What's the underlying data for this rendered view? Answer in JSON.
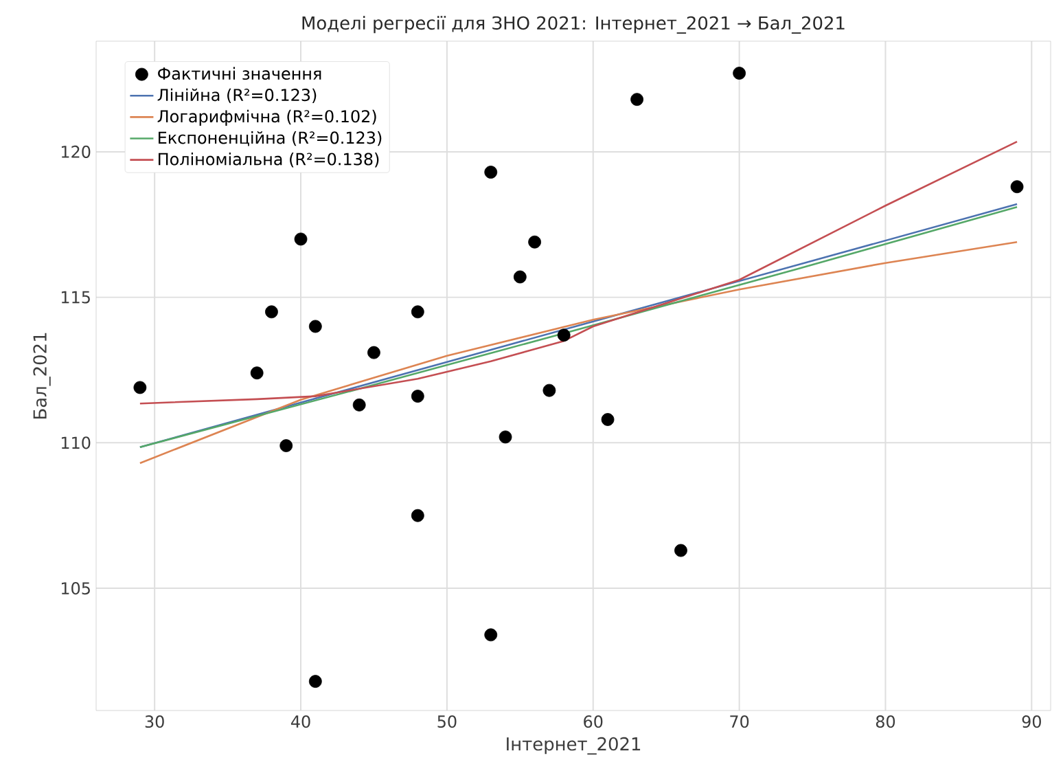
{
  "chart_data": {
    "type": "scatter",
    "title": "Моделі регресії для ЗНО 2021: Інтернет_2021 → Бал_2021",
    "xlabel": "Інтернет_2021",
    "ylabel": "Бал_2021",
    "xlim": [
      26,
      91.3
    ],
    "ylim": [
      100.8,
      123.8
    ],
    "xticks": [
      30,
      40,
      50,
      60,
      70,
      80,
      90
    ],
    "yticks": [
      105,
      110,
      115,
      120
    ],
    "grid": true,
    "legend": "top left",
    "series": [
      {
        "name": "Фактичні значення",
        "color": "#000000",
        "x": [
          29,
          37,
          38,
          39,
          40,
          41,
          41,
          44,
          45,
          48,
          48,
          48,
          53,
          53,
          54,
          55,
          56,
          57,
          58,
          61,
          63,
          66,
          70,
          89
        ],
        "values": [
          111.9,
          112.4,
          114.5,
          109.9,
          117.0,
          114.0,
          101.8,
          111.3,
          113.1,
          114.5,
          111.6,
          107.5,
          119.3,
          103.4,
          110.2,
          115.7,
          116.9,
          111.8,
          113.7,
          110.8,
          121.8,
          106.3,
          122.7,
          118.8
        ]
      },
      {
        "name": "Лінійна (R²=0.123)",
        "type": "line",
        "color": "#4c72b0",
        "x": [
          29,
          59,
          89
        ],
        "values": [
          109.85,
          114.03,
          118.2
        ]
      },
      {
        "name": "Логарифмічна (R²=0.102)",
        "type": "line",
        "color": "#dd8452",
        "x": [
          29,
          40,
          50,
          60,
          70,
          80,
          89
        ],
        "values": [
          109.3,
          111.48,
          112.99,
          114.23,
          115.27,
          116.18,
          116.9
        ]
      },
      {
        "name": "Експоненційна (R²=0.123)",
        "type": "line",
        "color": "#55a868",
        "x": [
          29,
          45,
          59,
          74,
          89
        ],
        "values": [
          109.85,
          111.99,
          113.9,
          115.98,
          118.1
        ]
      },
      {
        "name": "Поліноміальна (R²=0.138)",
        "type": "line",
        "color": "#c44e52",
        "x": [
          29,
          37,
          41,
          48,
          53,
          58,
          60,
          70,
          80,
          89
        ],
        "values": [
          111.35,
          111.5,
          111.6,
          112.2,
          112.8,
          113.5,
          114.0,
          115.6,
          118.15,
          120.35
        ]
      }
    ]
  }
}
